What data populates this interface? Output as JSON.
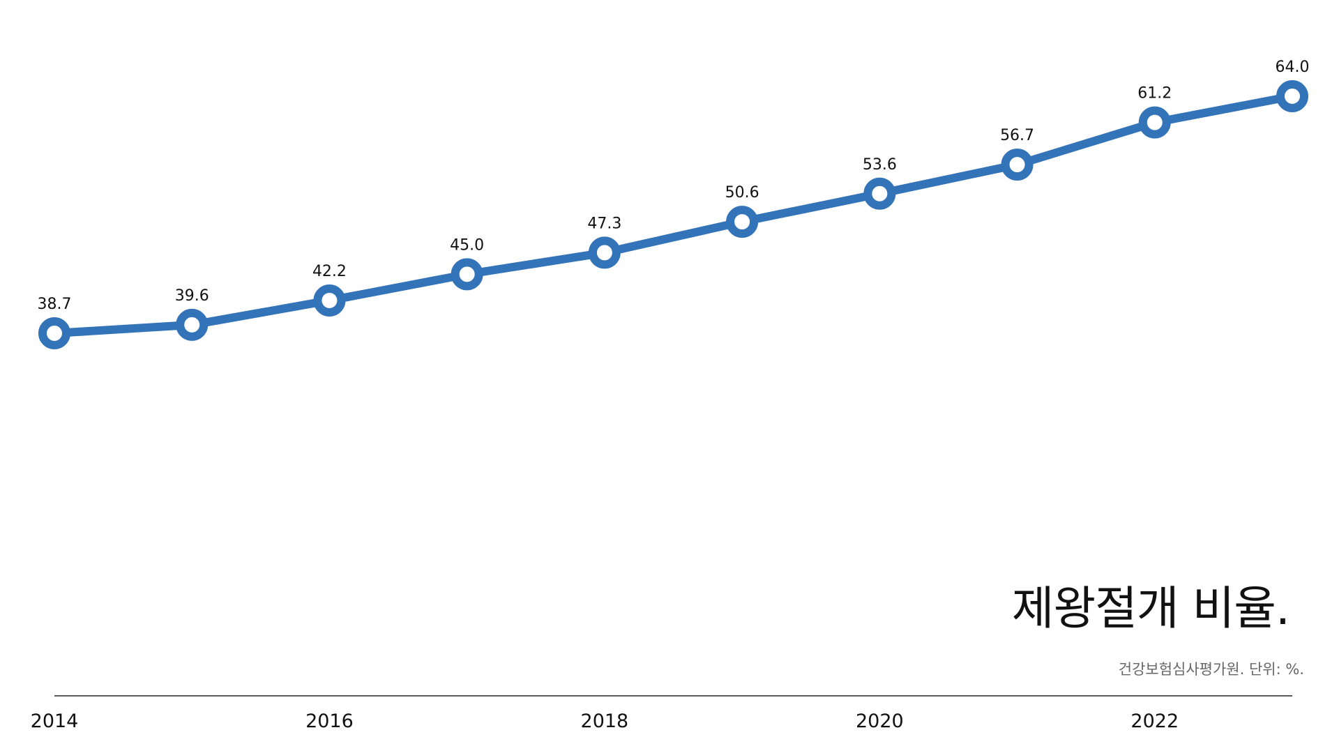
{
  "chart_data": {
    "type": "line",
    "title": "제왕절개 비율.",
    "source": "건강보험심사평가원. 단위: %.",
    "x": [
      2014,
      2015,
      2016,
      2017,
      2018,
      2019,
      2020,
      2021,
      2022,
      2023
    ],
    "x_tick_labels": [
      "2014",
      "2016",
      "2018",
      "2020",
      "2022"
    ],
    "xlabel": "",
    "ylabel": "",
    "ylim": [
      0,
      70
    ],
    "grid": false,
    "series": [
      {
        "values": [
          38.7,
          39.6,
          42.2,
          45.0,
          47.3,
          50.6,
          53.6,
          56.7,
          61.2,
          64.0
        ],
        "labels": [
          "38.7",
          "39.6",
          "42.2",
          "45.0",
          "47.3",
          "50.6",
          "53.6",
          "56.7",
          "61.2",
          "64.0"
        ],
        "color": "#3373b8"
      }
    ]
  }
}
